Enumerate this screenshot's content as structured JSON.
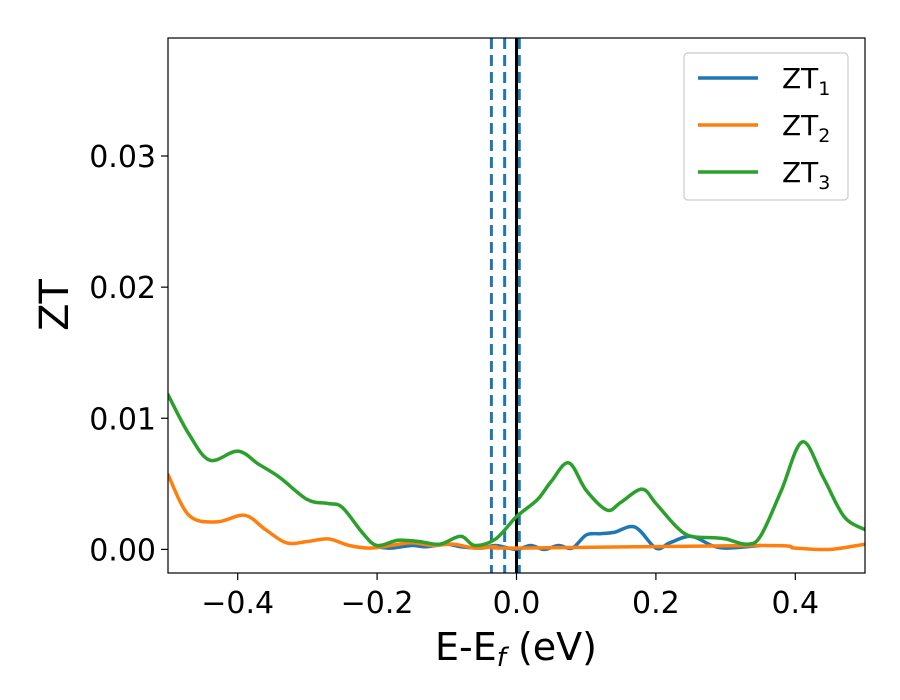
{
  "chart_data": {
    "type": "line",
    "xlabel": "E-E",
    "xlabel_sub": "f",
    "xlabel_unit": " (eV)",
    "ylabel": "ZT",
    "xlim": [
      -0.5,
      0.5
    ],
    "ylim": [
      -0.0018,
      0.039
    ],
    "xticks": [
      -0.4,
      -0.2,
      0.0,
      0.2,
      0.4
    ],
    "xtick_labels": [
      "−0.4",
      "−0.2",
      "0.0",
      "0.2",
      "0.4"
    ],
    "yticks": [
      0.0,
      0.01,
      0.02,
      0.03
    ],
    "ytick_labels": [
      "0.00",
      "0.01",
      "0.02",
      "0.03"
    ],
    "grid": false,
    "legend_position": "top-right",
    "vertical_lines": [
      {
        "x": -0.036,
        "style": "dashed",
        "color": "#1f77b4"
      },
      {
        "x": -0.017,
        "style": "dashed",
        "color": "#1f77b4"
      },
      {
        "x": 0.004,
        "style": "dashed",
        "color": "#1f77b4"
      },
      {
        "x": 0.0,
        "style": "solid",
        "color": "#000000"
      }
    ],
    "series": [
      {
        "name": "ZT",
        "name_sub": "1",
        "color": "#1f77b4",
        "x": [
          -0.2,
          -0.18,
          -0.15,
          -0.13,
          -0.1,
          -0.08,
          -0.05,
          -0.03,
          0.0,
          0.02,
          0.04,
          0.06,
          0.08,
          0.1,
          0.12,
          0.14,
          0.17,
          0.2,
          0.22,
          0.25,
          0.28,
          0.3,
          0.33,
          0.35
        ],
        "y": [
          0.0002,
          0.0001,
          0.0003,
          0.0002,
          0.0004,
          0.0002,
          0.0001,
          0.0003,
          0.0,
          0.0003,
          0.0,
          0.0003,
          0.0001,
          0.0011,
          0.0012,
          0.0013,
          0.0017,
          0.0001,
          0.0005,
          0.001,
          0.0003,
          0.0001,
          0.0002,
          0.0003
        ]
      },
      {
        "name": "ZT",
        "name_sub": "2",
        "color": "#ff7f0e",
        "x": [
          -0.5,
          -0.47,
          -0.43,
          -0.39,
          -0.36,
          -0.33,
          -0.3,
          -0.27,
          -0.24,
          -0.21,
          -0.18,
          -0.15,
          -0.12,
          -0.09,
          -0.06,
          -0.03,
          0.0,
          0.35,
          0.4,
          0.45,
          0.5
        ],
        "y": [
          0.0057,
          0.0026,
          0.0021,
          0.0026,
          0.0015,
          0.0005,
          0.0006,
          0.0008,
          0.0003,
          0.0001,
          0.0003,
          0.0005,
          0.0003,
          0.0004,
          0.0001,
          0.0002,
          0.0001,
          0.0003,
          0.0001,
          0.0,
          0.0004
        ]
      },
      {
        "name": "ZT",
        "name_sub": "3",
        "color": "#2ca02c",
        "x": [
          -0.5,
          -0.47,
          -0.44,
          -0.4,
          -0.37,
          -0.34,
          -0.3,
          -0.27,
          -0.25,
          -0.22,
          -0.2,
          -0.17,
          -0.14,
          -0.11,
          -0.08,
          -0.06,
          -0.03,
          0.0,
          0.03,
          0.05,
          0.075,
          0.1,
          0.13,
          0.15,
          0.18,
          0.2,
          0.23,
          0.25,
          0.28,
          0.3,
          0.33,
          0.35,
          0.38,
          0.41,
          0.44,
          0.47,
          0.5
        ],
        "y": [
          0.0118,
          0.0088,
          0.0068,
          0.0075,
          0.0065,
          0.0055,
          0.0038,
          0.0035,
          0.0032,
          0.0012,
          0.0003,
          0.0007,
          0.0006,
          0.0004,
          0.001,
          0.0003,
          0.0008,
          0.0025,
          0.0038,
          0.0052,
          0.0066,
          0.0045,
          0.003,
          0.0036,
          0.0046,
          0.0035,
          0.0017,
          0.001,
          0.0009,
          0.0008,
          0.0004,
          0.001,
          0.0045,
          0.0082,
          0.0055,
          0.0025,
          0.0015
        ]
      }
    ]
  }
}
